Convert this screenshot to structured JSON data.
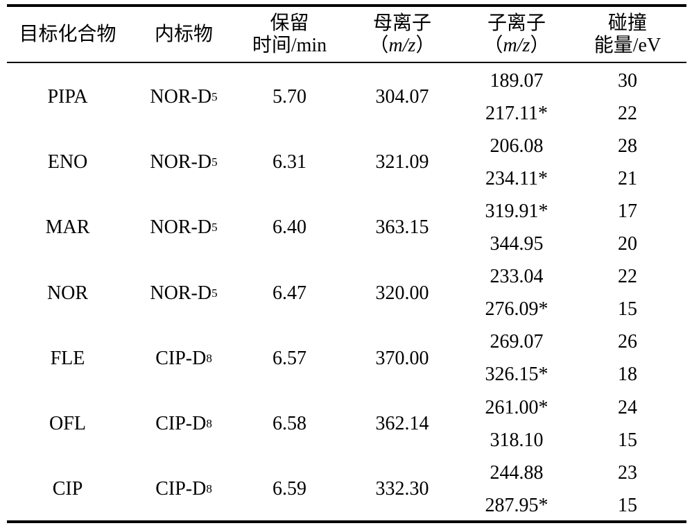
{
  "header": {
    "col1": "目标化合物",
    "col2": "内标物",
    "col3_line1": "保留",
    "col3_line2": "时间/min",
    "col4_line1": "母离子",
    "col4_open": "（",
    "col4_mz": "m/z",
    "col4_close": "）",
    "col5_line1": "子离子",
    "col5_open": "（",
    "col5_mz": "m/z",
    "col5_close": "）",
    "col6_line1": "碰撞",
    "col6_line2": "能量/eV"
  },
  "rows": [
    {
      "compound": "PIPA",
      "is_base": "NOR-D",
      "is_sub": "5",
      "rt": "5.70",
      "parent": "304.07",
      "ions": [
        {
          "mz": "189.07",
          "ce": "30"
        },
        {
          "mz": "217.11*",
          "ce": "22"
        }
      ]
    },
    {
      "compound": "ENO",
      "is_base": "NOR-D",
      "is_sub": "5",
      "rt": "6.31",
      "parent": "321.09",
      "ions": [
        {
          "mz": "206.08",
          "ce": "28"
        },
        {
          "mz": "234.11*",
          "ce": "21"
        }
      ]
    },
    {
      "compound": "MAR",
      "is_base": "NOR-D",
      "is_sub": "5",
      "rt": "6.40",
      "parent": "363.15",
      "ions": [
        {
          "mz": "319.91*",
          "ce": "17"
        },
        {
          "mz": "344.95",
          "ce": "20"
        }
      ]
    },
    {
      "compound": "NOR",
      "is_base": "NOR-D",
      "is_sub": "5",
      "rt": "6.47",
      "parent": "320.00",
      "ions": [
        {
          "mz": "233.04",
          "ce": "22"
        },
        {
          "mz": "276.09*",
          "ce": "15"
        }
      ]
    },
    {
      "compound": "FLE",
      "is_base": "CIP-D",
      "is_sub": "8",
      "rt": "6.57",
      "parent": "370.00",
      "ions": [
        {
          "mz": "269.07",
          "ce": "26"
        },
        {
          "mz": "326.15*",
          "ce": "18"
        }
      ]
    },
    {
      "compound": "OFL",
      "is_base": "CIP-D",
      "is_sub": "8",
      "rt": "6.58",
      "parent": "362.14",
      "ions": [
        {
          "mz": "261.00*",
          "ce": "24"
        },
        {
          "mz": "318.10",
          "ce": "15"
        }
      ]
    },
    {
      "compound": "CIP",
      "is_base": "CIP-D",
      "is_sub": "8",
      "rt": "6.59",
      "parent": "332.30",
      "ions": [
        {
          "mz": "244.88",
          "ce": "23"
        },
        {
          "mz": "287.95*",
          "ce": "15"
        }
      ]
    }
  ]
}
